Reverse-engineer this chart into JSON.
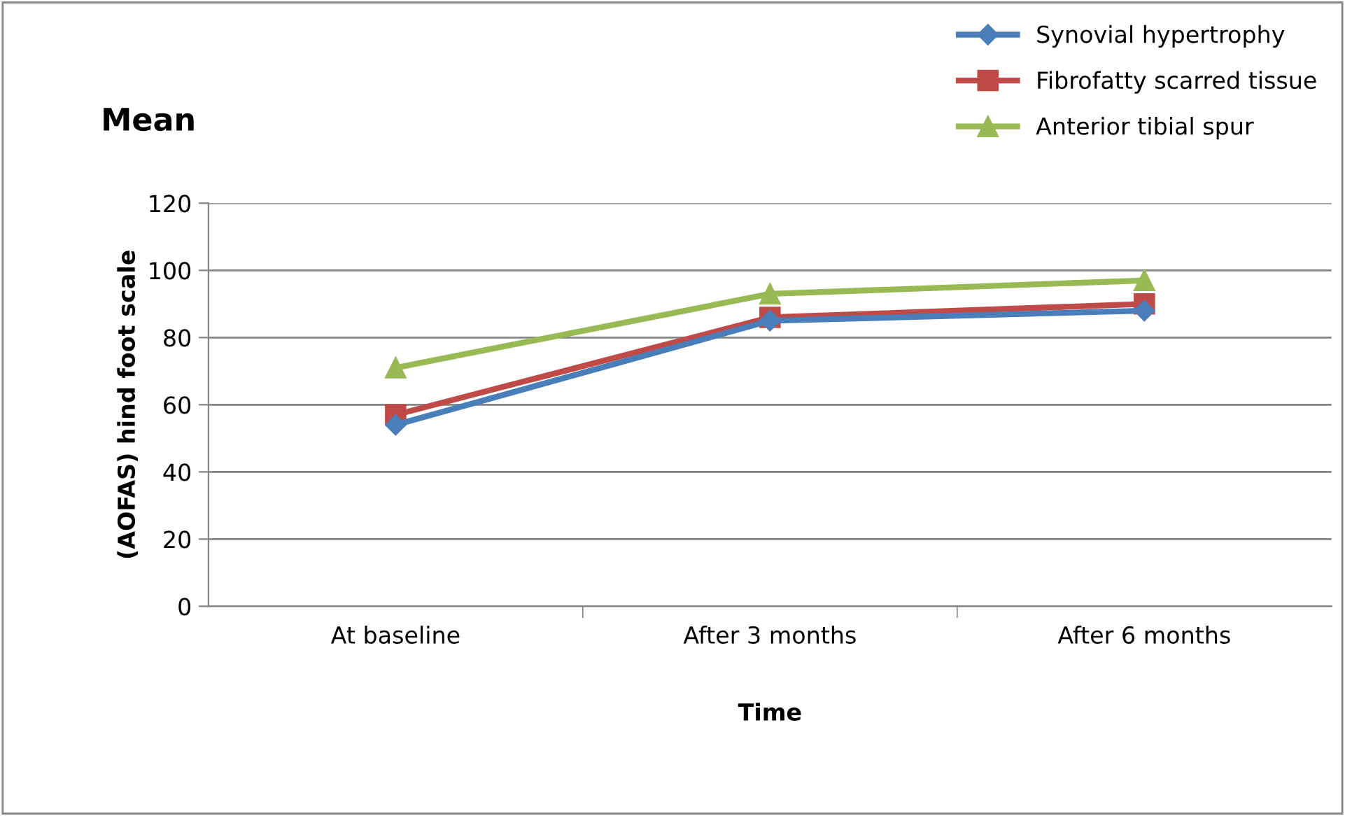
{
  "chart_data": {
    "type": "line",
    "title": "Mean",
    "xlabel": "Time",
    "ylabel": "(AOFAS) hind foot scale",
    "categories": [
      "At baseline",
      "After 3 months",
      "After 6 months"
    ],
    "series": [
      {
        "name": "Synovial hypertrophy",
        "color": "#4a7ebb",
        "marker": "diamond",
        "values": [
          54,
          85,
          88
        ]
      },
      {
        "name": "Fibrofatty scarred tissue",
        "color": "#be4b48",
        "marker": "square",
        "values": [
          57,
          86,
          90
        ]
      },
      {
        "name": "Anterior tibial spur",
        "color": "#98b954",
        "marker": "triangle",
        "values": [
          71,
          93,
          97
        ]
      }
    ],
    "ylim": [
      0,
      120
    ],
    "yticks": [
      0,
      20,
      40,
      60,
      80,
      100,
      120
    ],
    "grid": "y",
    "legend": "top right",
    "line_style": "solid"
  }
}
